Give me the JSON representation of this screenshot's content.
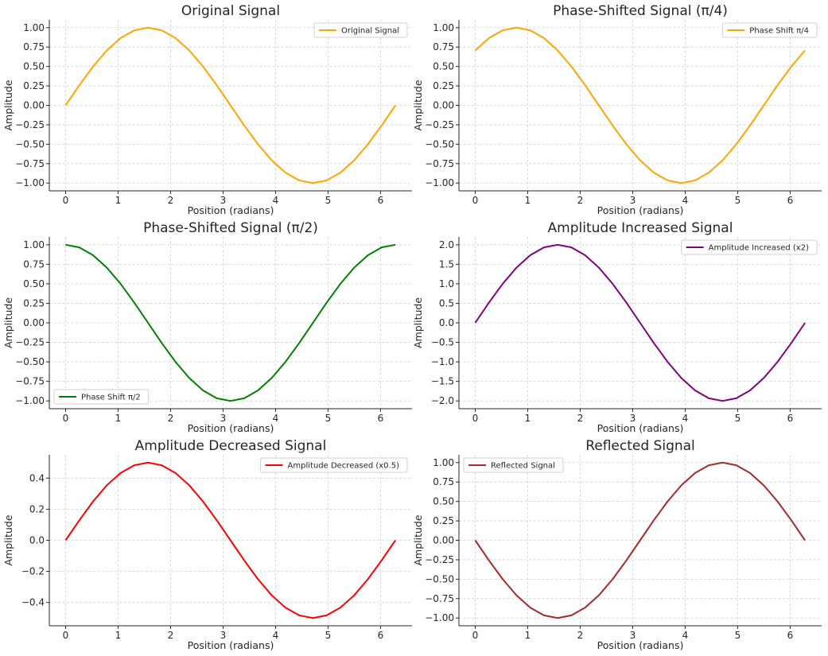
{
  "chart_data": [
    {
      "type": "line",
      "title": "Original Signal",
      "xlabel": "Position (radians)",
      "ylabel": "Amplitude",
      "xlim": [
        -0.31,
        6.6
      ],
      "ylim": [
        -1.1,
        1.1
      ],
      "xticks": [
        0,
        1,
        2,
        3,
        4,
        5,
        6
      ],
      "xtick_labels": [
        "0",
        "1",
        "2",
        "3",
        "4",
        "5",
        "6"
      ],
      "yticks": [
        1.0,
        0.75,
        0.5,
        0.25,
        0.0,
        -0.25,
        -0.5,
        -0.75,
        -1.0
      ],
      "ytick_labels": [
        "1.00",
        "0.75",
        "0.50",
        "0.25",
        "0.00",
        "−0.25",
        "−0.50",
        "−0.75",
        "−1.00"
      ],
      "grid": true,
      "legend_position": "top-right",
      "series": [
        {
          "name": "Original Signal",
          "color": "#FFA500",
          "x": [
            0,
            0.2618,
            0.5236,
            0.7854,
            1.0472,
            1.309,
            1.5708,
            1.8326,
            2.0944,
            2.3562,
            2.618,
            2.8798,
            3.1416,
            3.4034,
            3.6652,
            3.927,
            4.1888,
            4.4506,
            4.7124,
            4.9742,
            5.236,
            5.4978,
            5.7596,
            6.0214,
            6.2832
          ],
          "y": [
            0,
            0.259,
            0.5,
            0.707,
            0.866,
            0.966,
            1.0,
            0.966,
            0.866,
            0.707,
            0.5,
            0.259,
            0,
            -0.259,
            -0.5,
            -0.707,
            -0.866,
            -0.966,
            -1.0,
            -0.966,
            -0.866,
            -0.707,
            -0.5,
            -0.259,
            0
          ]
        }
      ]
    },
    {
      "type": "line",
      "title": "Phase-Shifted Signal (π/4)",
      "xlabel": "Position (radians)",
      "ylabel": "Amplitude",
      "xlim": [
        -0.31,
        6.6
      ],
      "ylim": [
        -1.1,
        1.1
      ],
      "xticks": [
        0,
        1,
        2,
        3,
        4,
        5,
        6
      ],
      "xtick_labels": [
        "0",
        "1",
        "2",
        "3",
        "4",
        "5",
        "6"
      ],
      "yticks": [
        1.0,
        0.75,
        0.5,
        0.25,
        0.0,
        -0.25,
        -0.5,
        -0.75,
        -1.0
      ],
      "ytick_labels": [
        "1.00",
        "0.75",
        "0.50",
        "0.25",
        "0.00",
        "−0.25",
        "−0.50",
        "−0.75",
        "−1.00"
      ],
      "grid": true,
      "legend_position": "top-right",
      "series": [
        {
          "name": "Phase Shift π/4",
          "color": "#FFA500",
          "x": [
            0,
            0.2618,
            0.5236,
            0.7854,
            1.0472,
            1.309,
            1.5708,
            1.8326,
            2.0944,
            2.3562,
            2.618,
            2.8798,
            3.1416,
            3.4034,
            3.6652,
            3.927,
            4.1888,
            4.4506,
            4.7124,
            4.9742,
            5.236,
            5.4978,
            5.7596,
            6.0214,
            6.2832
          ],
          "y": [
            0.707,
            0.866,
            0.966,
            1.0,
            0.966,
            0.866,
            0.707,
            0.5,
            0.259,
            0,
            -0.259,
            -0.5,
            -0.707,
            -0.866,
            -0.966,
            -1.0,
            -0.966,
            -0.866,
            -0.707,
            -0.5,
            -0.259,
            0,
            0.259,
            0.5,
            0.707
          ]
        }
      ]
    },
    {
      "type": "line",
      "title": "Phase-Shifted Signal (π/2)",
      "xlabel": "Position (radians)",
      "ylabel": "Amplitude",
      "xlim": [
        -0.31,
        6.6
      ],
      "ylim": [
        -1.1,
        1.1
      ],
      "xticks": [
        0,
        1,
        2,
        3,
        4,
        5,
        6
      ],
      "xtick_labels": [
        "0",
        "1",
        "2",
        "3",
        "4",
        "5",
        "6"
      ],
      "yticks": [
        1.0,
        0.75,
        0.5,
        0.25,
        0.0,
        -0.25,
        -0.5,
        -0.75,
        -1.0
      ],
      "ytick_labels": [
        "1.00",
        "0.75",
        "0.50",
        "0.25",
        "0.00",
        "−0.25",
        "−0.50",
        "−0.75",
        "−1.00"
      ],
      "grid": true,
      "legend_position": "bottom-left",
      "series": [
        {
          "name": "Phase Shift π/2",
          "color": "#008000",
          "x": [
            0,
            0.2618,
            0.5236,
            0.7854,
            1.0472,
            1.309,
            1.5708,
            1.8326,
            2.0944,
            2.3562,
            2.618,
            2.8798,
            3.1416,
            3.4034,
            3.6652,
            3.927,
            4.1888,
            4.4506,
            4.7124,
            4.9742,
            5.236,
            5.4978,
            5.7596,
            6.0214,
            6.2832
          ],
          "y": [
            1.0,
            0.966,
            0.866,
            0.707,
            0.5,
            0.259,
            0,
            -0.259,
            -0.5,
            -0.707,
            -0.866,
            -0.966,
            -1.0,
            -0.966,
            -0.866,
            -0.707,
            -0.5,
            -0.259,
            0,
            0.259,
            0.5,
            0.707,
            0.866,
            0.966,
            1.0
          ]
        }
      ]
    },
    {
      "type": "line",
      "title": "Amplitude Increased Signal",
      "xlabel": "Position (radians)",
      "ylabel": "Amplitude",
      "xlim": [
        -0.31,
        6.6
      ],
      "ylim": [
        -2.2,
        2.2
      ],
      "xticks": [
        0,
        1,
        2,
        3,
        4,
        5,
        6
      ],
      "xtick_labels": [
        "0",
        "1",
        "2",
        "3",
        "4",
        "5",
        "6"
      ],
      "yticks": [
        2.0,
        1.5,
        1.0,
        0.5,
        0.0,
        -0.5,
        -1.0,
        -1.5,
        -2.0
      ],
      "ytick_labels": [
        "2.0",
        "1.5",
        "1.0",
        "0.5",
        "0.0",
        "−0.5",
        "−1.0",
        "−1.5",
        "−2.0"
      ],
      "grid": true,
      "legend_position": "top-right",
      "series": [
        {
          "name": "Amplitude Increased (x2)",
          "color": "#800080",
          "x": [
            0,
            0.2618,
            0.5236,
            0.7854,
            1.0472,
            1.309,
            1.5708,
            1.8326,
            2.0944,
            2.3562,
            2.618,
            2.8798,
            3.1416,
            3.4034,
            3.6652,
            3.927,
            4.1888,
            4.4506,
            4.7124,
            4.9742,
            5.236,
            5.4978,
            5.7596,
            6.0214,
            6.2832
          ],
          "y": [
            0,
            0.518,
            1.0,
            1.414,
            1.732,
            1.932,
            2.0,
            1.932,
            1.732,
            1.414,
            1.0,
            0.518,
            0,
            -0.518,
            -1.0,
            -1.414,
            -1.732,
            -1.932,
            -2.0,
            -1.932,
            -1.732,
            -1.414,
            -1.0,
            -0.518,
            0
          ]
        }
      ]
    },
    {
      "type": "line",
      "title": "Amplitude Decreased Signal",
      "xlabel": "Position (radians)",
      "ylabel": "Amplitude",
      "xlim": [
        -0.31,
        6.6
      ],
      "ylim": [
        -0.55,
        0.55
      ],
      "xticks": [
        0,
        1,
        2,
        3,
        4,
        5,
        6
      ],
      "xtick_labels": [
        "0",
        "1",
        "2",
        "3",
        "4",
        "5",
        "6"
      ],
      "yticks": [
        0.4,
        0.2,
        0.0,
        -0.2,
        -0.4
      ],
      "ytick_labels": [
        "0.4",
        "0.2",
        "0.0",
        "−0.2",
        "−0.4"
      ],
      "grid": true,
      "legend_position": "top-right",
      "series": [
        {
          "name": "Amplitude Decreased (x0.5)",
          "color": "#FF0000",
          "x": [
            0,
            0.2618,
            0.5236,
            0.7854,
            1.0472,
            1.309,
            1.5708,
            1.8326,
            2.0944,
            2.3562,
            2.618,
            2.8798,
            3.1416,
            3.4034,
            3.6652,
            3.927,
            4.1888,
            4.4506,
            4.7124,
            4.9742,
            5.236,
            5.4978,
            5.7596,
            6.0214,
            6.2832
          ],
          "y": [
            0,
            0.129,
            0.25,
            0.354,
            0.433,
            0.483,
            0.5,
            0.483,
            0.433,
            0.354,
            0.25,
            0.129,
            0,
            -0.129,
            -0.25,
            -0.354,
            -0.433,
            -0.483,
            -0.5,
            -0.483,
            -0.433,
            -0.354,
            -0.25,
            -0.129,
            0
          ]
        }
      ]
    },
    {
      "type": "line",
      "title": "Reflected Signal",
      "xlabel": "Position (radians)",
      "ylabel": "Amplitude",
      "xlim": [
        -0.31,
        6.6
      ],
      "ylim": [
        -1.1,
        1.1
      ],
      "xticks": [
        0,
        1,
        2,
        3,
        4,
        5,
        6
      ],
      "xtick_labels": [
        "0",
        "1",
        "2",
        "3",
        "4",
        "5",
        "6"
      ],
      "yticks": [
        1.0,
        0.75,
        0.5,
        0.25,
        0.0,
        -0.25,
        -0.5,
        -0.75,
        -1.0
      ],
      "ytick_labels": [
        "1.00",
        "0.75",
        "0.50",
        "0.25",
        "0.00",
        "−0.25",
        "−0.50",
        "−0.75",
        "−1.00"
      ],
      "grid": true,
      "legend_position": "top-left",
      "series": [
        {
          "name": "Reflected Signal",
          "color": "#A52A2A",
          "x": [
            0,
            0.2618,
            0.5236,
            0.7854,
            1.0472,
            1.309,
            1.5708,
            1.8326,
            2.0944,
            2.3562,
            2.618,
            2.8798,
            3.1416,
            3.4034,
            3.6652,
            3.927,
            4.1888,
            4.4506,
            4.7124,
            4.9742,
            5.236,
            5.4978,
            5.7596,
            6.0214,
            6.2832
          ],
          "y": [
            0,
            -0.259,
            -0.5,
            -0.707,
            -0.866,
            -0.966,
            -1.0,
            -0.966,
            -0.866,
            -0.707,
            -0.5,
            -0.259,
            0,
            0.259,
            0.5,
            0.707,
            0.866,
            0.966,
            1.0,
            0.966,
            0.866,
            0.707,
            0.5,
            0.259,
            0
          ]
        }
      ]
    }
  ]
}
